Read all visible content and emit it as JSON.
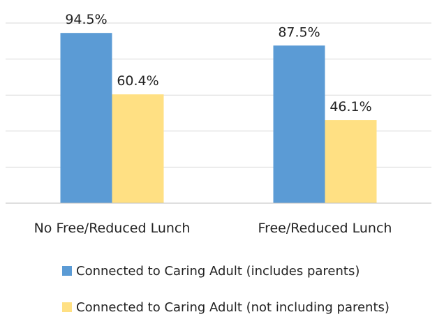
{
  "chart_data": {
    "type": "bar",
    "categories": [
      "No Free/Reduced Lunch",
      "Free/Reduced Lunch"
    ],
    "series": [
      {
        "name": "Connected to Caring Adult (includes parents)",
        "values": [
          94.5,
          87.5
        ],
        "labels": [
          "94.5%",
          "87.5%"
        ],
        "color": "#5b9bd5"
      },
      {
        "name": "Connected to Caring Adult (not including parents)",
        "values": [
          60.4,
          46.1
        ],
        "labels": [
          "60.4%",
          "46.1%"
        ],
        "color": "#ffe083"
      }
    ],
    "ylim": [
      0,
      100
    ],
    "grid": true,
    "legend_position": "bottom"
  }
}
